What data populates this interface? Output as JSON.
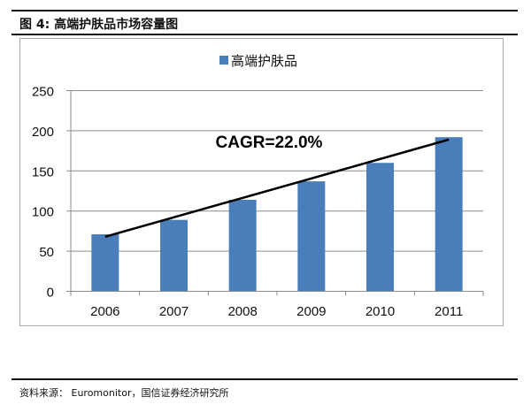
{
  "figure_title": "图 4:  高端护肤品市场容量图",
  "source": "资料来源： Euromonitor，国信证券经济研究所",
  "chart_data": {
    "type": "bar",
    "title": "",
    "categories": [
      "2006",
      "2007",
      "2008",
      "2009",
      "2010",
      "2011"
    ],
    "series": [
      {
        "name": "高端护肤品",
        "values": [
          71,
          89,
          114,
          137,
          160,
          192
        ],
        "color": "#4a7ebb"
      }
    ],
    "ylim": [
      0,
      250
    ],
    "yticks": [
      "0",
      "50",
      "100",
      "150",
      "200",
      "250"
    ],
    "grid": true,
    "legend": "top-center",
    "trendline": {
      "from": [
        "2006",
        68
      ],
      "to": [
        "2011",
        189
      ],
      "color": "#000000"
    },
    "annotation": "CAGR=22.0%",
    "xlabel": "",
    "ylabel": ""
  }
}
